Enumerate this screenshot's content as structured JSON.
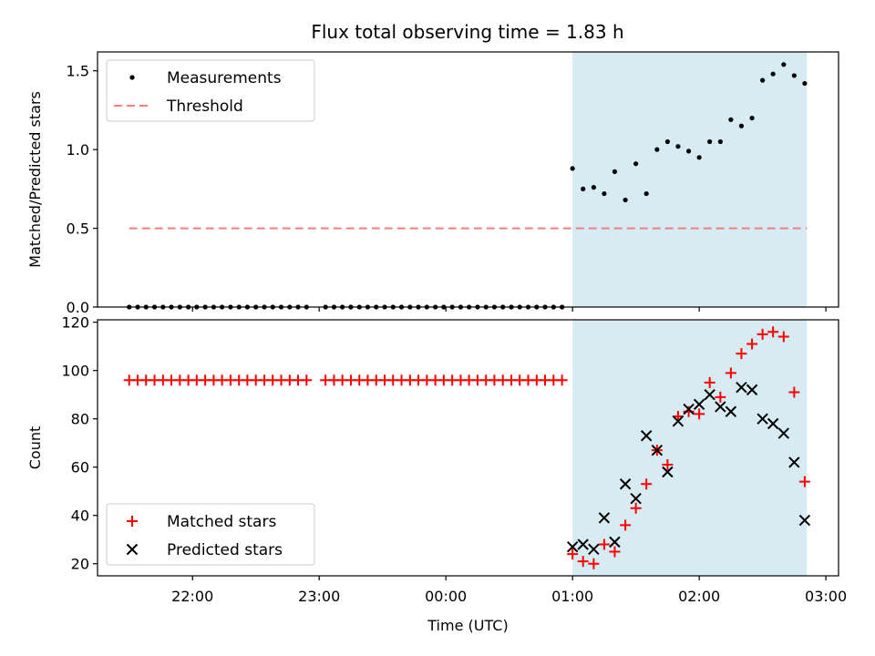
{
  "title": "Flux total observing time = 1.83 h",
  "colors": {
    "measurements": "#000000",
    "threshold": "#f08080",
    "matched": "#ff0000",
    "predicted": "#000000",
    "span": "#add8e6"
  },
  "chart_data": [
    {
      "type": "scatter",
      "ylabel": "Matched/Predicted stars",
      "xlim": [
        21.25,
        27.1
      ],
      "ylim": [
        0,
        1.62
      ],
      "yticks": [
        0.0,
        0.5,
        1.0,
        1.5
      ],
      "ytick_labels": [
        "0.0",
        "0.5",
        "1.0",
        "1.5"
      ],
      "span": [
        25.0,
        26.85
      ],
      "legend": {
        "position": "top-left",
        "entries": [
          "Measurements",
          "Threshold"
        ]
      },
      "threshold": {
        "name": "Threshold",
        "x": [
          21.5,
          26.85
        ],
        "y": 0.5
      },
      "series": [
        {
          "name": "Measurements",
          "x": [
            21.5,
            21.567,
            21.633,
            21.7,
            21.767,
            21.833,
            21.9,
            21.967,
            22.033,
            22.1,
            22.167,
            22.233,
            22.3,
            22.367,
            22.433,
            22.5,
            22.567,
            22.633,
            22.7,
            22.767,
            22.833,
            22.9,
            23.05,
            23.117,
            23.183,
            23.25,
            23.317,
            23.383,
            23.45,
            23.517,
            23.583,
            23.65,
            23.717,
            23.783,
            23.85,
            23.917,
            23.983,
            24.05,
            24.117,
            24.183,
            24.25,
            24.317,
            24.383,
            24.45,
            24.517,
            24.583,
            24.65,
            24.717,
            24.783,
            24.85,
            24.917,
            25.0,
            25.083,
            25.167,
            25.25,
            25.333,
            25.417,
            25.5,
            25.583,
            25.667,
            25.75,
            25.833,
            25.917,
            26.0,
            26.083,
            26.167,
            26.25,
            26.333,
            26.417,
            26.5,
            26.583,
            26.667,
            26.75,
            26.833
          ],
          "y": [
            0,
            0,
            0,
            0,
            0,
            0,
            0,
            0,
            0,
            0,
            0,
            0,
            0,
            0,
            0,
            0,
            0,
            0,
            0,
            0,
            0,
            0,
            0,
            0,
            0,
            0,
            0,
            0,
            0,
            0,
            0,
            0,
            0,
            0,
            0,
            0,
            0,
            0,
            0,
            0,
            0,
            0,
            0,
            0,
            0,
            0,
            0,
            0,
            0,
            0,
            0,
            0.88,
            0.75,
            0.76,
            0.72,
            0.86,
            0.68,
            0.91,
            0.72,
            1.0,
            1.05,
            1.02,
            0.99,
            0.95,
            1.05,
            1.05,
            1.19,
            1.15,
            1.2,
            1.44,
            1.48,
            1.54,
            1.47,
            1.42
          ]
        }
      ]
    },
    {
      "type": "scatter",
      "xlabel": "Time (UTC)",
      "ylabel": "Count",
      "xlim": [
        21.25,
        27.1
      ],
      "ylim": [
        15,
        121
      ],
      "yticks": [
        20,
        40,
        60,
        80,
        100,
        120
      ],
      "ytick_labels": [
        "20",
        "40",
        "60",
        "80",
        "100",
        "120"
      ],
      "xticks": [
        22,
        23,
        24,
        25,
        26,
        27
      ],
      "xtick_labels": [
        "22:00",
        "23:00",
        "00:00",
        "01:00",
        "02:00",
        "03:00"
      ],
      "span": [
        25.0,
        26.85
      ],
      "legend": {
        "position": "bottom-left",
        "entries": [
          "Matched stars",
          "Predicted stars"
        ]
      },
      "series": [
        {
          "name": "Matched stars",
          "x": [
            21.5,
            21.567,
            21.633,
            21.7,
            21.767,
            21.833,
            21.9,
            21.967,
            22.033,
            22.1,
            22.167,
            22.233,
            22.3,
            22.367,
            22.433,
            22.5,
            22.567,
            22.633,
            22.7,
            22.767,
            22.833,
            22.9,
            23.05,
            23.117,
            23.183,
            23.25,
            23.317,
            23.383,
            23.45,
            23.517,
            23.583,
            23.65,
            23.717,
            23.783,
            23.85,
            23.917,
            23.983,
            24.05,
            24.117,
            24.183,
            24.25,
            24.317,
            24.383,
            24.45,
            24.517,
            24.583,
            24.65,
            24.717,
            24.783,
            24.85,
            24.917,
            25.0,
            25.083,
            25.167,
            25.25,
            25.333,
            25.417,
            25.5,
            25.583,
            25.667,
            25.75,
            25.833,
            25.917,
            26.0,
            26.083,
            26.167,
            26.25,
            26.333,
            26.417,
            26.5,
            26.583,
            26.667,
            26.75,
            26.833
          ],
          "y": [
            96,
            96,
            96,
            96,
            96,
            96,
            96,
            96,
            96,
            96,
            96,
            96,
            96,
            96,
            96,
            96,
            96,
            96,
            96,
            96,
            96,
            96,
            96,
            96,
            96,
            96,
            96,
            96,
            96,
            96,
            96,
            96,
            96,
            96,
            96,
            96,
            96,
            96,
            96,
            96,
            96,
            96,
            96,
            96,
            96,
            96,
            96,
            96,
            96,
            96,
            96,
            24,
            21,
            20,
            28,
            25,
            36,
            43,
            53,
            67,
            61,
            81,
            83,
            82,
            95,
            89,
            99,
            107,
            111,
            115,
            116,
            114,
            91,
            54
          ]
        },
        {
          "name": "Predicted stars",
          "x": [
            25.0,
            25.083,
            25.167,
            25.25,
            25.333,
            25.417,
            25.5,
            25.583,
            25.667,
            25.75,
            25.833,
            25.917,
            26.0,
            26.083,
            26.167,
            26.25,
            26.333,
            26.417,
            26.5,
            26.583,
            26.667,
            26.75,
            26.833
          ],
          "y": [
            27,
            28,
            26,
            39,
            29,
            53,
            47,
            73,
            67,
            58,
            79,
            84,
            86,
            90,
            85,
            83,
            93,
            92,
            80,
            78,
            74,
            62,
            38
          ]
        }
      ]
    }
  ]
}
